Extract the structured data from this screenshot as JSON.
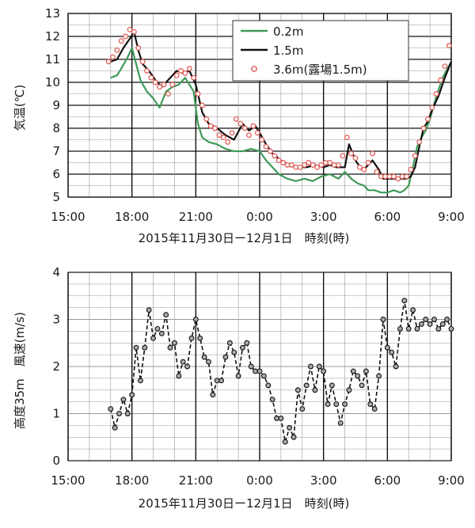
{
  "colors": {
    "green": "#3f9a5a",
    "black": "#111111",
    "red": "#e0605a",
    "dashed": "#111111",
    "marker": "#555555",
    "grid_minor": "#999999",
    "grid_major": "#111111"
  },
  "chart_data": [
    {
      "type": "line",
      "ylabel": "気温(℃)",
      "xlabel": "2015年11月30日ー12月1日　時刻(時)",
      "ylim": [
        5,
        13
      ],
      "yticks": [
        "5",
        "6",
        "7",
        "8",
        "9",
        "10",
        "11",
        "12",
        "13"
      ],
      "xlim_hours": [
        15,
        33
      ],
      "xticks": [
        "15:00",
        "18:00",
        "21:00",
        "0:00",
        "3:00",
        "6:00",
        "9:00"
      ],
      "grid": true,
      "legend_position": "top-right",
      "series": [
        {
          "name": "0.2m",
          "style": "line",
          "color": "green",
          "x": [
            17.0,
            17.3,
            17.5,
            17.8,
            18.0,
            18.2,
            18.4,
            18.7,
            19.0,
            19.3,
            19.6,
            19.9,
            20.2,
            20.5,
            20.9,
            21.1,
            21.3,
            21.6,
            22.0,
            22.4,
            22.8,
            23.2,
            23.6,
            24.0,
            24.3,
            24.6,
            24.9,
            25.3,
            25.7,
            26.1,
            26.5,
            26.9,
            27.3,
            27.7,
            28.0,
            28.3,
            28.6,
            28.9,
            29.1,
            29.4,
            29.7,
            30.0,
            30.3,
            30.6,
            30.8,
            31.0,
            31.2,
            31.4,
            31.6,
            31.8,
            32.0,
            32.3,
            32.6,
            33.0
          ],
          "y": [
            10.2,
            10.3,
            10.6,
            11.1,
            11.5,
            10.8,
            10.1,
            9.6,
            9.3,
            8.9,
            9.6,
            9.8,
            9.9,
            10.2,
            9.6,
            8.2,
            7.6,
            7.4,
            7.3,
            7.1,
            7.0,
            7.0,
            7.1,
            7.0,
            6.6,
            6.3,
            6.0,
            5.8,
            5.7,
            5.8,
            5.7,
            5.9,
            6.0,
            5.8,
            6.1,
            5.8,
            5.6,
            5.5,
            5.3,
            5.3,
            5.2,
            5.2,
            5.3,
            5.2,
            5.3,
            5.5,
            6.3,
            7.2,
            7.6,
            7.9,
            8.4,
            9.4,
            10.2,
            10.9
          ]
        },
        {
          "name": "1.5m",
          "style": "line",
          "color": "black",
          "x": [
            17.0,
            17.3,
            17.6,
            17.9,
            18.1,
            18.3,
            18.5,
            18.8,
            19.1,
            19.4,
            19.8,
            20.1,
            20.4,
            20.7,
            21.0,
            21.3,
            21.6,
            22.0,
            22.4,
            22.8,
            23.2,
            23.5,
            23.8,
            24.0,
            24.3,
            24.6,
            25.0,
            25.4,
            25.8,
            26.2,
            26.6,
            27.0,
            27.3,
            27.6,
            28.0,
            28.2,
            28.5,
            28.8,
            29.0,
            29.3,
            29.6,
            29.8,
            30.0,
            30.3,
            30.6,
            30.9,
            31.1,
            31.3,
            31.5,
            31.7,
            31.9,
            32.1,
            32.4,
            32.7,
            33.0
          ],
          "y": [
            10.9,
            11.0,
            11.5,
            11.9,
            12.2,
            11.4,
            10.8,
            10.5,
            10.1,
            9.8,
            10.2,
            10.5,
            10.4,
            10.5,
            9.9,
            8.7,
            8.2,
            8.0,
            7.7,
            7.5,
            8.2,
            7.9,
            8.1,
            7.8,
            7.3,
            6.9,
            6.6,
            6.4,
            6.3,
            6.3,
            6.4,
            6.3,
            6.4,
            6.3,
            6.3,
            7.3,
            6.6,
            6.2,
            6.3,
            6.6,
            6.2,
            5.8,
            5.8,
            5.8,
            5.8,
            5.8,
            5.9,
            6.3,
            7.2,
            8.0,
            8.3,
            8.8,
            9.4,
            10.2,
            10.9
          ]
        },
        {
          "name": "3.6m(露場1.5m)",
          "style": "markers",
          "color": "red",
          "x": [
            16.9,
            17.1,
            17.3,
            17.5,
            17.7,
            17.9,
            18.1,
            18.3,
            18.5,
            18.7,
            18.9,
            19.1,
            19.3,
            19.5,
            19.7,
            19.9,
            20.1,
            20.3,
            20.5,
            20.7,
            20.9,
            21.1,
            21.3,
            21.5,
            21.7,
            21.9,
            22.1,
            22.3,
            22.5,
            22.7,
            22.9,
            23.1,
            23.3,
            23.5,
            23.7,
            23.9,
            24.1,
            24.3,
            24.5,
            24.7,
            24.9,
            25.1,
            25.3,
            25.5,
            25.7,
            25.9,
            26.1,
            26.3,
            26.5,
            26.7,
            26.9,
            27.1,
            27.3,
            27.5,
            27.7,
            27.9,
            28.1,
            28.3,
            28.5,
            28.7,
            28.9,
            29.1,
            29.3,
            29.5,
            29.7,
            29.9,
            30.1,
            30.3,
            30.5,
            30.7,
            30.9,
            31.1,
            31.3,
            31.5,
            31.7,
            31.9,
            32.1,
            32.3,
            32.5,
            32.7,
            32.9
          ],
          "y": [
            10.9,
            11.1,
            11.4,
            11.8,
            12.0,
            12.3,
            12.2,
            11.5,
            10.9,
            10.5,
            10.2,
            10.0,
            9.8,
            9.9,
            9.5,
            9.9,
            10.3,
            10.5,
            10.4,
            10.6,
            10.2,
            9.5,
            9.0,
            8.4,
            8.1,
            8.0,
            7.7,
            7.6,
            7.4,
            7.8,
            8.4,
            8.2,
            8.0,
            7.7,
            8.1,
            7.8,
            7.5,
            7.2,
            7.0,
            6.8,
            6.6,
            6.5,
            6.4,
            6.4,
            6.3,
            6.3,
            6.4,
            6.5,
            6.4,
            6.3,
            6.4,
            6.5,
            6.5,
            6.4,
            6.4,
            6.8,
            7.6,
            6.9,
            6.7,
            6.3,
            6.2,
            6.5,
            6.9,
            6.1,
            5.9,
            5.9,
            5.9,
            5.9,
            5.8,
            5.9,
            5.9,
            6.2,
            6.8,
            7.4,
            8.0,
            8.4,
            8.9,
            9.5,
            10.1,
            10.7,
            11.6
          ]
        }
      ]
    },
    {
      "type": "line",
      "ylabel": "高度35m　風速(m/s)",
      "xlabel": "2015年11月30日ー12月1日　時刻(時)",
      "ylim": [
        0,
        4
      ],
      "yticks": [
        "0",
        "1",
        "2",
        "3",
        "4"
      ],
      "xlim_hours": [
        15,
        33
      ],
      "xticks": [
        "15:00",
        "18:00",
        "21:00",
        "0:00",
        "3:00",
        "6:00",
        "9:00"
      ],
      "grid": true,
      "series": [
        {
          "style": "dashed-markers",
          "color": "dashed",
          "x": [
            17.0,
            17.2,
            17.4,
            17.6,
            17.8,
            18.0,
            18.2,
            18.4,
            18.6,
            18.8,
            19.0,
            19.2,
            19.4,
            19.6,
            19.8,
            20.0,
            20.2,
            20.4,
            20.6,
            20.8,
            21.0,
            21.2,
            21.4,
            21.6,
            21.8,
            22.0,
            22.2,
            22.4,
            22.6,
            22.8,
            23.0,
            23.2,
            23.4,
            23.6,
            23.8,
            24.0,
            24.2,
            24.4,
            24.6,
            24.8,
            25.0,
            25.2,
            25.4,
            25.6,
            25.8,
            26.0,
            26.2,
            26.4,
            26.6,
            26.8,
            27.0,
            27.2,
            27.4,
            27.6,
            27.8,
            28.0,
            28.2,
            28.4,
            28.6,
            28.8,
            29.0,
            29.2,
            29.4,
            29.6,
            29.8,
            30.0,
            30.2,
            30.4,
            30.6,
            30.8,
            31.0,
            31.2,
            31.4,
            31.6,
            31.8,
            32.0,
            32.2,
            32.4,
            32.6,
            32.8,
            33.0
          ],
          "y": [
            1.1,
            0.7,
            1.0,
            1.3,
            1.0,
            1.4,
            2.4,
            1.7,
            2.4,
            3.2,
            2.6,
            2.8,
            2.7,
            3.1,
            2.4,
            2.5,
            1.8,
            2.1,
            2.0,
            2.6,
            3.0,
            2.6,
            2.2,
            2.1,
            1.4,
            1.7,
            1.7,
            2.2,
            2.5,
            2.3,
            1.8,
            2.4,
            2.5,
            2.0,
            1.9,
            1.9,
            1.8,
            1.6,
            1.3,
            0.9,
            0.9,
            0.4,
            0.7,
            0.5,
            1.5,
            1.1,
            1.6,
            2.0,
            1.5,
            2.0,
            1.9,
            1.2,
            1.6,
            1.2,
            0.8,
            1.2,
            1.5,
            1.9,
            1.8,
            1.6,
            1.9,
            1.2,
            1.1,
            1.8,
            3.0,
            2.4,
            2.3,
            2.0,
            2.8,
            3.4,
            2.8,
            3.2,
            2.8,
            2.9,
            3.0,
            2.9,
            3.0,
            2.8,
            2.9,
            3.0,
            2.8
          ]
        }
      ]
    }
  ]
}
